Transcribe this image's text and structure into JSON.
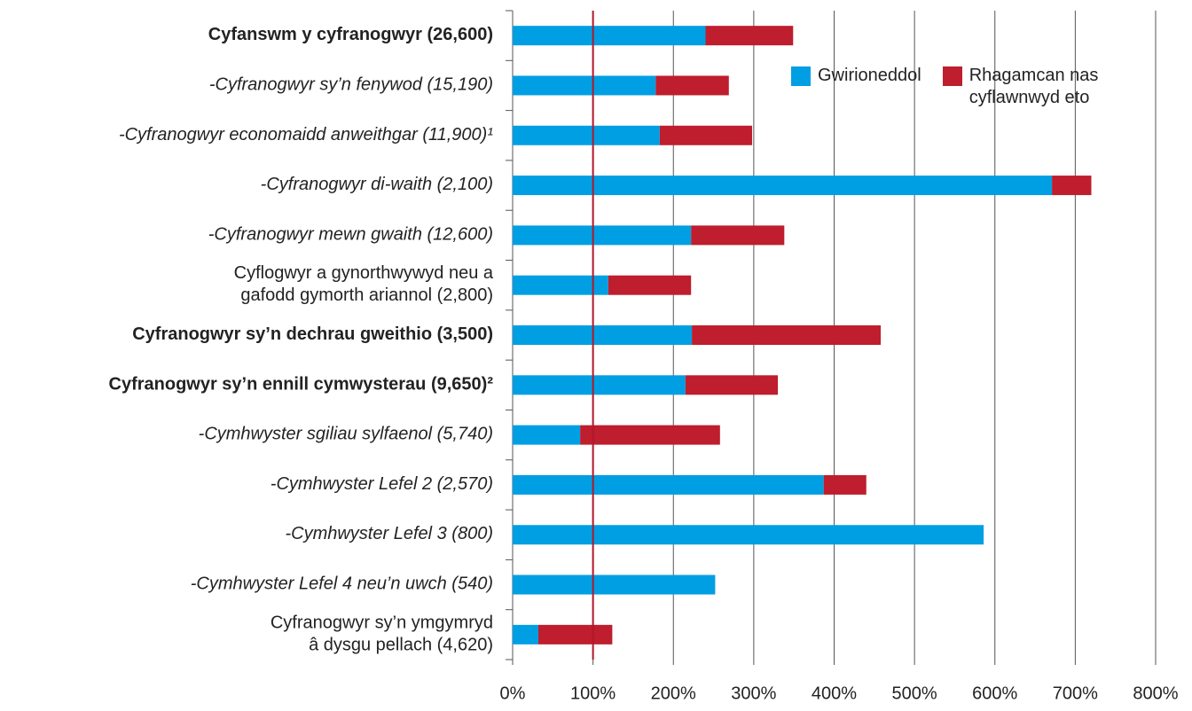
{
  "chart_data": {
    "type": "stacked_hbar",
    "categories": [
      [
        "Cyfanswm y cyfranogwyr (26,600)"
      ],
      [
        "-Cyfranogwyr sy’n fenywod (15,190)"
      ],
      [
        "-Cyfranogwyr economaidd anweithgar (11,900)¹"
      ],
      [
        "-Cyfranogwyr di-waith (2,100)"
      ],
      [
        "-Cyfranogwyr mewn gwaith (12,600)"
      ],
      [
        "Cyflogwyr a gynorthwywyd neu a",
        "gafodd gymorth ariannol (2,800)"
      ],
      [
        "Cyfranogwyr sy’n dechrau gweithio (3,500)"
      ],
      [
        "Cyfranogwyr sy’n ennill cymwysterau (9,650)²"
      ],
      [
        "-Cymhwyster sgiliau sylfaenol (5,740)"
      ],
      [
        "-Cymhwyster Lefel 2 (2,570)"
      ],
      [
        "-Cymhwyster Lefel 3 (800)"
      ],
      [
        "-Cymhwyster Lefel 4 neu’n uwch (540)"
      ],
      [
        "Cyfranogwyr sy’n ymgymryd",
        "â dysgu pellach (4,620)"
      ]
    ],
    "category_styles": [
      "bold",
      "italic",
      "italic",
      "italic",
      "italic",
      "normal",
      "bold",
      "bold",
      "italic",
      "italic",
      "italic",
      "italic",
      "normal"
    ],
    "series": [
      {
        "name": "Gwirioneddol",
        "color": "#009fe3",
        "values": [
          240,
          178,
          183,
          671,
          222,
          119,
          223,
          215,
          84,
          387,
          586,
          252,
          32
        ]
      },
      {
        "name": "Rhagamcan nas cyflawnwyd eto",
        "color": "#be1e2d",
        "values": [
          109,
          91,
          115,
          49,
          116,
          103,
          235,
          115,
          174,
          53,
          0,
          0,
          92
        ]
      }
    ],
    "xlim": [
      0,
      800
    ],
    "xticks": [
      {
        "value": 0,
        "label": "0%"
      },
      {
        "value": 100,
        "label": "100%"
      },
      {
        "value": 200,
        "label": "200%"
      },
      {
        "value": 300,
        "label": "300%"
      },
      {
        "value": 400,
        "label": "400%"
      },
      {
        "value": 500,
        "label": "500%"
      },
      {
        "value": 600,
        "label": "600%"
      },
      {
        "value": 700,
        "label": "700%"
      },
      {
        "value": 800,
        "label": "800%"
      }
    ],
    "reference_line": 100,
    "reference_color": "#b0182a",
    "grid": true
  }
}
